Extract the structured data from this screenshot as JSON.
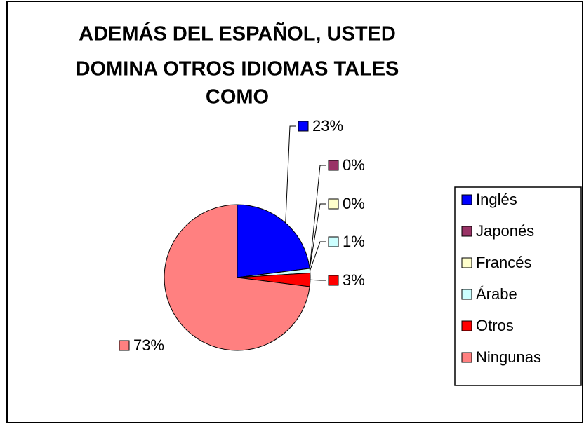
{
  "chart_data": {
    "type": "pie",
    "title": [
      "ADEMÁS DEL ESPAÑOL, USTED",
      "DOMINA OTROS IDIOMAS TALES",
      "COMO"
    ],
    "categories": [
      "Inglés",
      "Japonés",
      "Francés",
      "Árabe",
      "Otros",
      "Ningunas"
    ],
    "values": [
      23,
      0,
      0,
      1,
      3,
      73
    ],
    "value_labels": [
      "23%",
      "0%",
      "0%",
      "1%",
      "3%",
      "73%"
    ],
    "colors": [
      "#0000ff",
      "#993366",
      "#ffffcc",
      "#ccffff",
      "#ff0000",
      "#ff8080"
    ],
    "legend": "right"
  }
}
